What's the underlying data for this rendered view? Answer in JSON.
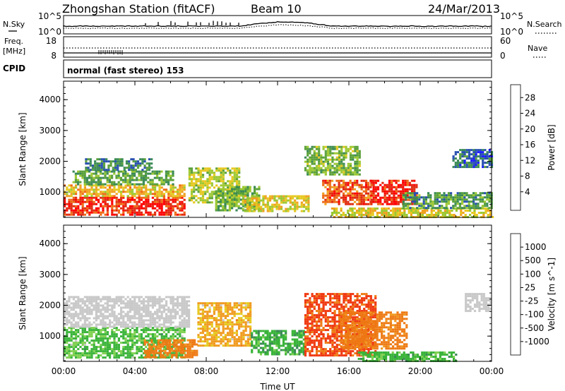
{
  "header": {
    "title": "Zhongshan Station (fitACF)",
    "beam": "Beam 10",
    "date": "24/Mar/2013"
  },
  "sky_panel": {
    "left_label": "N.Sky",
    "right_label": "N.Search",
    "left_ticks": [
      "10^5",
      "10^0"
    ],
    "right_ticks": [
      "10^5",
      "10^0"
    ]
  },
  "freq_panel": {
    "left_label_1": "Freq.",
    "left_label_2": "[MHz]",
    "right_label": "Nave",
    "left_ticks": [
      "18",
      "8"
    ],
    "right_ticks": [
      "60",
      "0"
    ]
  },
  "cpid_panel": {
    "label": "CPID",
    "text": "normal (fast stereo) 153"
  },
  "colors": {
    "power_scale": [
      "#1a1aff",
      "#2850b0",
      "#3a8a55",
      "#5aa03a",
      "#9cc832",
      "#e6c81e",
      "#f0a020",
      "#ee6a14",
      "#e02a10",
      "#ff0000"
    ],
    "velocity_scale": [
      "#ff1a1a",
      "#f03810",
      "#ee7a14",
      "#f09a1e",
      "#e6c81e",
      "#c8c8c8",
      "#7fd050",
      "#3ab43a",
      "#3a8a55",
      "#2a60a8",
      "#1a3ccc"
    ]
  },
  "chart_data": [
    {
      "type": "heatmap",
      "name": "Power",
      "ylabel": "Slant Range [km]",
      "colorbar_label": "Power [dB]",
      "colorbar_ticks": [
        "28",
        "24",
        "20",
        "16",
        "12",
        "8",
        "4"
      ],
      "ylim": [
        180,
        4600
      ],
      "yticks": [
        "1000",
        "2000",
        "3000",
        "4000"
      ],
      "regions": [
        {
          "t0": 0.0,
          "t1": 6.8,
          "r0": 300,
          "r1": 850,
          "value": 26
        },
        {
          "t0": 0.0,
          "t1": 6.8,
          "r0": 850,
          "r1": 1250,
          "value": 18
        },
        {
          "t0": 0.5,
          "t1": 6.2,
          "r0": 1250,
          "r1": 1700,
          "value": 10
        },
        {
          "t0": 1.2,
          "t1": 5.0,
          "r0": 1700,
          "r1": 2100,
          "value": 7
        },
        {
          "t0": 7.0,
          "t1": 9.8,
          "r0": 700,
          "r1": 1800,
          "value": 14
        },
        {
          "t0": 8.5,
          "t1": 11.0,
          "r0": 400,
          "r1": 1200,
          "value": 11
        },
        {
          "t0": 10.0,
          "t1": 13.8,
          "r0": 400,
          "r1": 900,
          "value": 16
        },
        {
          "t0": 13.5,
          "t1": 16.6,
          "r0": 1600,
          "r1": 2500,
          "value": 12
        },
        {
          "t0": 14.5,
          "t1": 17.2,
          "r0": 600,
          "r1": 1400,
          "value": 24
        },
        {
          "t0": 17.2,
          "t1": 19.8,
          "r0": 600,
          "r1": 1400,
          "value": 27
        },
        {
          "t0": 15.0,
          "t1": 24.0,
          "r0": 200,
          "r1": 500,
          "value": 16
        },
        {
          "t0": 19.0,
          "t1": 24.0,
          "r0": 500,
          "r1": 1000,
          "value": 9
        },
        {
          "t0": 21.8,
          "t1": 24.0,
          "r0": 1800,
          "r1": 2400,
          "value": 6
        }
      ]
    },
    {
      "type": "heatmap",
      "name": "Velocity",
      "xlabel": "Time UT",
      "ylabel": "Slant Range [km]",
      "colorbar_label": "Velocity [m s^-1]",
      "colorbar_ticks": [
        "1000",
        "500",
        "100",
        "25",
        "-25",
        "-100",
        "-500",
        "-1000"
      ],
      "ylim": [
        180,
        4600
      ],
      "yticks": [
        "1000",
        "2000",
        "3000",
        "4000"
      ],
      "xticks": [
        "00:00",
        "04:00",
        "08:00",
        "12:00",
        "16:00",
        "20:00",
        "00:00"
      ],
      "regions": [
        {
          "t0": 0.0,
          "t1": 6.8,
          "r0": 300,
          "r1": 1300,
          "value": 60
        },
        {
          "t0": 0.0,
          "t1": 7.0,
          "r0": 1300,
          "r1": 2300,
          "value": 0
        },
        {
          "t0": 4.5,
          "t1": 7.5,
          "r0": 300,
          "r1": 900,
          "value": -150
        },
        {
          "t0": 7.5,
          "t1": 10.5,
          "r0": 700,
          "r1": 2100,
          "value": -60
        },
        {
          "t0": 10.5,
          "t1": 13.5,
          "r0": 400,
          "r1": 1200,
          "value": 80
        },
        {
          "t0": 13.5,
          "t1": 17.5,
          "r0": 400,
          "r1": 2400,
          "value": -300
        },
        {
          "t0": 15.5,
          "t1": 19.2,
          "r0": 600,
          "r1": 1800,
          "value": -150
        },
        {
          "t0": 16.5,
          "t1": 22.0,
          "r0": 200,
          "r1": 500,
          "value": 70
        },
        {
          "t0": 22.5,
          "t1": 24.0,
          "r0": 1800,
          "r1": 2400,
          "value": 0
        }
      ]
    }
  ]
}
